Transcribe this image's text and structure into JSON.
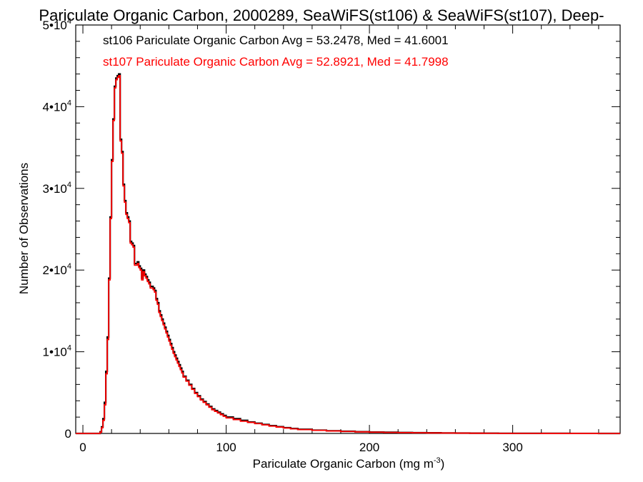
{
  "chart_data": {
    "type": "histogram",
    "title": "Pariculate Organic Carbon, 2000289, SeaWiFS(st106) & SeaWiFS(st107), Deep-",
    "xlabel": {
      "main": "Pariculate Organic Carbon (mg m",
      "sup": "-3",
      "close": ")"
    },
    "ylabel": "Number of Observations",
    "xlim": [
      -5,
      375
    ],
    "ylim": [
      0,
      50000
    ],
    "x_ticks": [
      {
        "value": 0,
        "label": "0"
      },
      {
        "value": 100,
        "label": "100"
      },
      {
        "value": 200,
        "label": "200"
      },
      {
        "value": 300,
        "label": "300"
      }
    ],
    "y_ticks": [
      {
        "value": 0,
        "label": "0",
        "sup": ""
      },
      {
        "value": 10000,
        "label": "1•10",
        "sup": "4"
      },
      {
        "value": 20000,
        "label": "2•10",
        "sup": "4"
      },
      {
        "value": 30000,
        "label": "3•10",
        "sup": "4"
      },
      {
        "value": 40000,
        "label": "4•10",
        "sup": "4"
      },
      {
        "value": 50000,
        "label": "5•10",
        "sup": "4"
      }
    ],
    "grid": false,
    "legend_position": "top-left",
    "series": [
      {
        "name": "st106",
        "color": "#000000",
        "legend": "st106 Pariculate Organic Carbon Avg = 53.2478, Med = 41.6001",
        "x": [
          -5,
          12,
          13,
          14,
          15,
          16,
          17,
          18,
          19,
          20,
          21,
          22,
          23,
          24,
          25,
          26,
          27,
          28,
          29,
          30,
          31,
          32,
          33,
          34,
          35,
          36,
          37,
          38,
          39,
          40,
          41,
          42,
          43,
          44,
          45,
          46,
          47,
          48,
          49,
          50,
          51,
          52,
          53,
          54,
          55,
          56,
          57,
          58,
          59,
          60,
          61,
          62,
          63,
          64,
          65,
          66,
          67,
          68,
          69,
          70,
          72,
          74,
          76,
          78,
          80,
          82,
          84,
          86,
          88,
          90,
          92,
          94,
          96,
          98,
          100,
          105,
          110,
          115,
          120,
          125,
          130,
          135,
          140,
          145,
          150,
          160,
          170,
          180,
          190,
          200,
          210,
          220,
          230,
          240,
          250,
          260,
          270,
          280,
          290,
          300,
          320,
          340,
          360
        ],
        "y": [
          0,
          200,
          800,
          1800,
          3800,
          7600,
          11800,
          19000,
          26500,
          33500,
          38500,
          42500,
          43500,
          43800,
          44000,
          36000,
          34500,
          30500,
          28500,
          27000,
          26500,
          26000,
          23500,
          23300,
          23000,
          20800,
          20800,
          21000,
          20500,
          20200,
          19000,
          20000,
          19500,
          19200,
          18800,
          18500,
          18000,
          18000,
          17800,
          17500,
          16500,
          16000,
          15000,
          14500,
          14000,
          13500,
          13000,
          12500,
          12000,
          11500,
          11000,
          10500,
          10000,
          9600,
          9200,
          8800,
          8400,
          8000,
          7600,
          7000,
          6500,
          6000,
          5500,
          5000,
          4600,
          4200,
          3900,
          3600,
          3300,
          3000,
          2800,
          2600,
          2400,
          2200,
          2000,
          1800,
          1600,
          1400,
          1250,
          1100,
          950,
          820,
          700,
          600,
          500,
          400,
          320,
          260,
          210,
          170,
          140,
          110,
          90,
          75,
          60,
          45,
          35,
          25,
          18,
          12,
          8,
          5,
          3
        ]
      },
      {
        "name": "st107",
        "color": "#ff0000",
        "legend": "st107 Pariculate Organic Carbon Avg = 52.8921, Med = 41.7998",
        "x": [
          -5,
          12,
          13,
          14,
          15,
          16,
          17,
          18,
          19,
          20,
          21,
          22,
          23,
          24,
          25,
          26,
          27,
          28,
          29,
          30,
          31,
          32,
          33,
          34,
          35,
          36,
          37,
          38,
          39,
          40,
          41,
          42,
          43,
          44,
          45,
          46,
          47,
          48,
          49,
          50,
          51,
          52,
          53,
          54,
          55,
          56,
          57,
          58,
          59,
          60,
          61,
          62,
          63,
          64,
          65,
          66,
          67,
          68,
          69,
          70,
          72,
          74,
          76,
          78,
          80,
          82,
          84,
          86,
          88,
          90,
          92,
          94,
          96,
          98,
          100,
          105,
          110,
          115,
          120,
          125,
          130,
          135,
          140,
          145,
          150,
          160,
          170,
          180,
          190,
          200,
          210,
          220,
          230,
          240,
          250,
          260,
          270,
          280,
          290,
          300,
          320,
          340,
          360
        ],
        "y": [
          0,
          150,
          700,
          1600,
          3500,
          7300,
          11500,
          18800,
          26300,
          33300,
          38300,
          42300,
          43300,
          43600,
          43800,
          35800,
          34300,
          30300,
          28300,
          26800,
          26300,
          25800,
          23300,
          23100,
          22800,
          20600,
          20600,
          20800,
          20300,
          20000,
          18800,
          19800,
          19300,
          19000,
          18600,
          18300,
          17800,
          17800,
          17600,
          17300,
          16300,
          15800,
          14800,
          14300,
          13800,
          13300,
          12800,
          12300,
          11800,
          11300,
          10800,
          10300,
          9800,
          9400,
          9000,
          8600,
          8200,
          7800,
          7400,
          6900,
          6400,
          5900,
          5400,
          4900,
          4500,
          4100,
          3800,
          3500,
          3200,
          2900,
          2700,
          2500,
          2300,
          2100,
          1900,
          1700,
          1500,
          1350,
          1200,
          1050,
          900,
          780,
          670,
          570,
          470,
          380,
          300,
          240,
          190,
          150,
          120,
          95,
          78,
          62,
          50,
          38,
          28,
          20,
          14,
          9,
          6,
          4,
          2
        ]
      }
    ]
  }
}
